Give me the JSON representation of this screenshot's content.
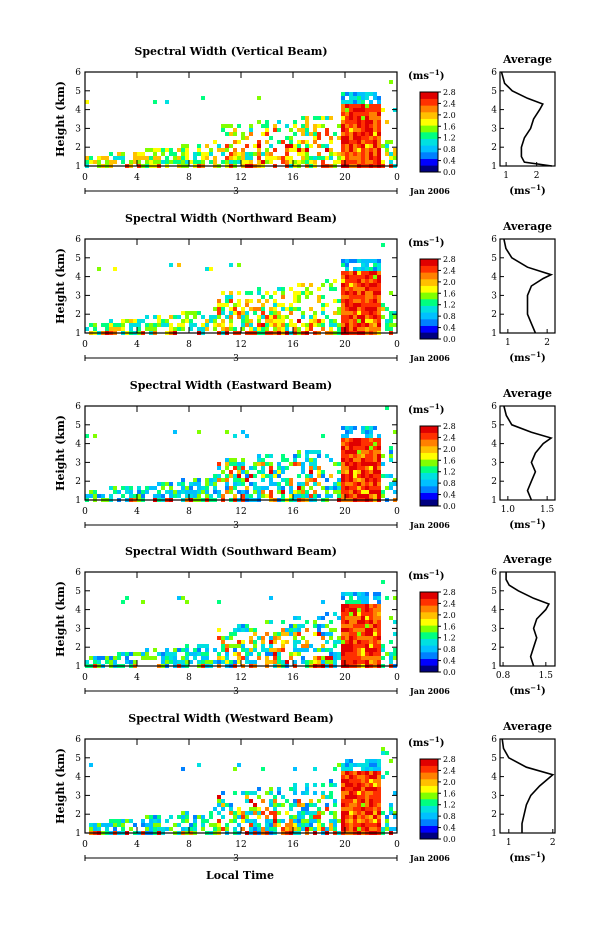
{
  "chart_data": {
    "type": "heatmap",
    "common": {
      "x_ticks": [
        "0",
        "4",
        "8",
        "12",
        "16",
        "20",
        "0"
      ],
      "x_tick_values": [
        0,
        4,
        8,
        12,
        16,
        20,
        24
      ],
      "xlim": [
        0,
        24
      ],
      "y_ticks": [
        "1",
        "2",
        "3",
        "4",
        "5",
        "6"
      ],
      "ylim": [
        1,
        6
      ],
      "ylabel": "Height (km)",
      "date_day": "3",
      "date_label": "Jan 2006",
      "colorbar_unit": "(ms",
      "colorbar_unit_exp": "−1",
      "colorbar_unit_close": ")",
      "colorbar_ticks": [
        "0.0",
        "0.4",
        "0.8",
        "1.2",
        "1.6",
        "2.0",
        "2.4",
        "2.8"
      ],
      "colorbar_range": [
        0,
        2.8
      ],
      "profile_title": "Average",
      "profile_unit": "(ms",
      "profile_unit_exp": "−1",
      "profile_unit_close": ")",
      "xlabel_bottom": "Local Time",
      "colormap": [
        "#000080",
        "#0000ff",
        "#0080ff",
        "#00c0ff",
        "#00e0e0",
        "#00ff80",
        "#80ff00",
        "#ffff00",
        "#ffc000",
        "#ff8000",
        "#ff3000",
        "#e00000"
      ]
    },
    "panels": [
      {
        "title": "Spectral Width (Vertical Beam)",
        "profile_xticks": [
          "1",
          "2"
        ],
        "profile_xtick_values": [
          1,
          2
        ],
        "profile_xlim": [
          0.8,
          2.6
        ],
        "profile": [
          [
            1.0,
            2.5
          ],
          [
            1.2,
            1.6
          ],
          [
            1.5,
            1.5
          ],
          [
            2.0,
            1.5
          ],
          [
            2.5,
            1.6
          ],
          [
            3.0,
            1.8
          ],
          [
            3.5,
            1.9
          ],
          [
            4.0,
            2.1
          ],
          [
            4.3,
            2.2
          ],
          [
            4.6,
            1.7
          ],
          [
            5.0,
            1.2
          ],
          [
            5.4,
            0.95
          ],
          [
            6.0,
            0.85
          ]
        ],
        "cloud_top_km": 4.4
      },
      {
        "title": "Spectral Width (Northward Beam)",
        "profile_xticks": [
          "1",
          "2"
        ],
        "profile_xtick_values": [
          1,
          2
        ],
        "profile_xlim": [
          0.8,
          2.2
        ],
        "profile": [
          [
            1.0,
            1.7
          ],
          [
            1.5,
            1.6
          ],
          [
            2.0,
            1.5
          ],
          [
            2.5,
            1.5
          ],
          [
            3.0,
            1.5
          ],
          [
            3.5,
            1.6
          ],
          [
            3.9,
            1.9
          ],
          [
            4.1,
            2.1
          ],
          [
            4.5,
            1.5
          ],
          [
            5.0,
            1.1
          ],
          [
            5.5,
            0.95
          ],
          [
            6.0,
            0.9
          ]
        ],
        "cloud_top_km": 4.3
      },
      {
        "title": "Spectral Width (Eastward Beam)",
        "profile_xticks": [
          "1.0",
          "1.5"
        ],
        "profile_xtick_values": [
          1.0,
          1.5
        ],
        "profile_xlim": [
          0.9,
          1.6
        ],
        "profile": [
          [
            1.0,
            1.3
          ],
          [
            1.5,
            1.25
          ],
          [
            2.0,
            1.3
          ],
          [
            2.5,
            1.35
          ],
          [
            3.0,
            1.3
          ],
          [
            3.5,
            1.35
          ],
          [
            4.0,
            1.45
          ],
          [
            4.3,
            1.55
          ],
          [
            4.6,
            1.3
          ],
          [
            5.0,
            1.05
          ],
          [
            5.5,
            0.98
          ],
          [
            6.0,
            0.95
          ]
        ],
        "cloud_top_km": 4.4
      },
      {
        "title": "Spectral Width (Southward Beam)",
        "profile_xticks": [
          "0.8",
          "1.5"
        ],
        "profile_xtick_values": [
          0.8,
          1.5
        ],
        "profile_xlim": [
          0.75,
          1.65
        ],
        "profile": [
          [
            1.0,
            1.3
          ],
          [
            1.5,
            1.25
          ],
          [
            2.0,
            1.3
          ],
          [
            2.5,
            1.35
          ],
          [
            3.0,
            1.3
          ],
          [
            3.5,
            1.35
          ],
          [
            4.0,
            1.5
          ],
          [
            4.3,
            1.55
          ],
          [
            4.6,
            1.3
          ],
          [
            5.0,
            1.05
          ],
          [
            5.3,
            0.9
          ],
          [
            5.6,
            0.85
          ],
          [
            6.0,
            0.85
          ]
        ],
        "cloud_top_km": 4.4
      },
      {
        "title": "Spectral Width (Westward Beam)",
        "profile_xticks": [
          "1",
          "2"
        ],
        "profile_xtick_values": [
          1,
          2
        ],
        "profile_xlim": [
          0.8,
          2.05
        ],
        "profile": [
          [
            1.0,
            1.3
          ],
          [
            1.5,
            1.3
          ],
          [
            2.0,
            1.35
          ],
          [
            2.5,
            1.4
          ],
          [
            3.0,
            1.5
          ],
          [
            3.5,
            1.7
          ],
          [
            3.9,
            1.9
          ],
          [
            4.1,
            2.0
          ],
          [
            4.5,
            1.4
          ],
          [
            5.0,
            1.0
          ],
          [
            5.5,
            0.88
          ],
          [
            6.0,
            0.85
          ]
        ],
        "cloud_top_km": 4.3
      }
    ]
  }
}
